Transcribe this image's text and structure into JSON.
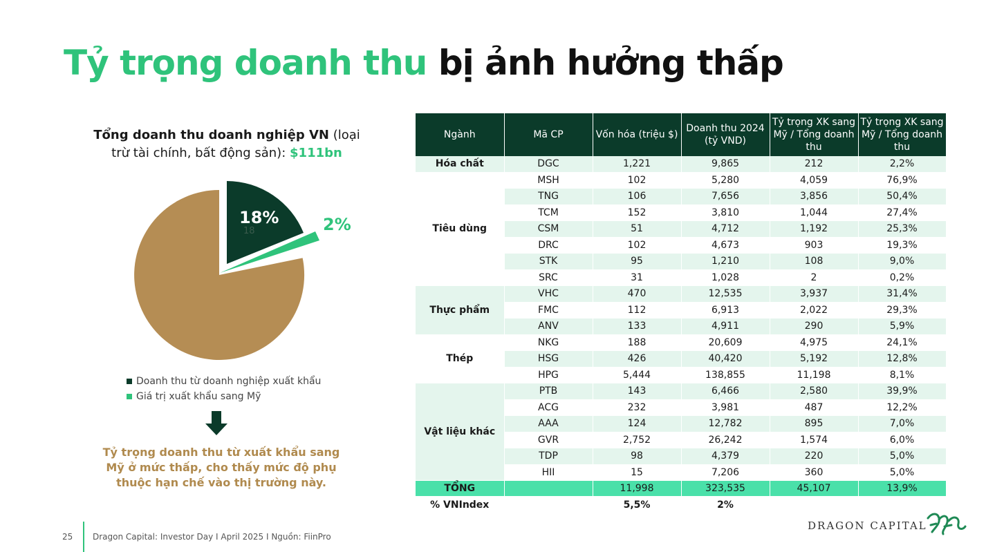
{
  "title": {
    "green": "Tỷ trọng doanh thu",
    "black": "bị ảnh hưởng thấp"
  },
  "left": {
    "head_bold": "Tổng doanh thu doanh nghiệp VN",
    "head_normal": " (loại trừ tài chính, bất động sản):",
    "head_amount": "$111bn",
    "pie": {
      "export_pct": "18%",
      "export_small": "18",
      "us_pct": "2%",
      "values": [
        80,
        18,
        2
      ],
      "colors": {
        "domestic": "#b58d54",
        "export": "#0b3b2a",
        "us": "#2fc37b"
      }
    },
    "legend": [
      {
        "label": "Doanh thu từ doanh nghiệp xuất khẩu",
        "color": "#0b3b2a"
      },
      {
        "label": "Giá trị xuất khẩu sang Mỹ",
        "color": "#2fc37b"
      }
    ],
    "note": "Tỷ trọng doanh thu từ xuất khẩu sang Mỹ ở mức thấp, cho thấy mức độ phụ thuộc hạn chế vào thị trường này."
  },
  "table": {
    "headers": [
      "Ngành",
      "Mã CP",
      "Vốn hóa (triệu $)",
      "Doanh thu 2024 (tỷ VND)",
      "Tỷ trọng XK sang Mỹ / Tổng doanh thu",
      "Tỷ trọng XK sang Mỹ / Tổng doanh thu"
    ],
    "sectors": [
      "Hóa chất",
      "Tiêu dùng",
      "Thực phẩm",
      "Thép",
      "Vật liệu khác"
    ],
    "rows": [
      [
        "DGC",
        "1,221",
        "9,865",
        "212",
        "2,2%"
      ],
      [
        "MSH",
        "102",
        "5,280",
        "4,059",
        "76,9%"
      ],
      [
        "TNG",
        "106",
        "7,656",
        "3,856",
        "50,4%"
      ],
      [
        "TCM",
        "152",
        "3,810",
        "1,044",
        "27,4%"
      ],
      [
        "CSM",
        "51",
        "4,712",
        "1,192",
        "25,3%"
      ],
      [
        "DRC",
        "102",
        "4,673",
        "903",
        "19,3%"
      ],
      [
        "STK",
        "95",
        "1,210",
        "108",
        "9,0%"
      ],
      [
        "SRC",
        "31",
        "1,028",
        "2",
        "0,2%"
      ],
      [
        "VHC",
        "470",
        "12,535",
        "3,937",
        "31,4%"
      ],
      [
        "FMC",
        "112",
        "6,913",
        "2,022",
        "29,3%"
      ],
      [
        "ANV",
        "133",
        "4,911",
        "290",
        "5,9%"
      ],
      [
        "NKG",
        "188",
        "20,609",
        "4,975",
        "24,1%"
      ],
      [
        "HSG",
        "426",
        "40,420",
        "5,192",
        "12,8%"
      ],
      [
        "HPG",
        "5,444",
        "138,855",
        "11,198",
        "8,1%"
      ],
      [
        "PTB",
        "143",
        "6,466",
        "2,580",
        "39,9%"
      ],
      [
        "ACG",
        "232",
        "3,981",
        "487",
        "12,2%"
      ],
      [
        "AAA",
        "124",
        "12,782",
        "895",
        "7,0%"
      ],
      [
        "GVR",
        "2,752",
        "26,242",
        "1,574",
        "6,0%"
      ],
      [
        "TDP",
        "98",
        "4,379",
        "220",
        "5,0%"
      ],
      [
        "HII",
        "15",
        "7,206",
        "360",
        "5,0%"
      ]
    ],
    "total": [
      "TỔNG",
      "",
      "11,998",
      "323,535",
      "45,107",
      "13,9%"
    ],
    "vnindex": [
      "% VNIndex",
      "",
      "5,5%",
      "2%",
      "",
      ""
    ]
  },
  "footer": {
    "page": "25",
    "text": "Dragon Capital: Investor Day I April 2025 I Nguồn: FiinPro",
    "brand": "DRAGON CAPITAL"
  }
}
